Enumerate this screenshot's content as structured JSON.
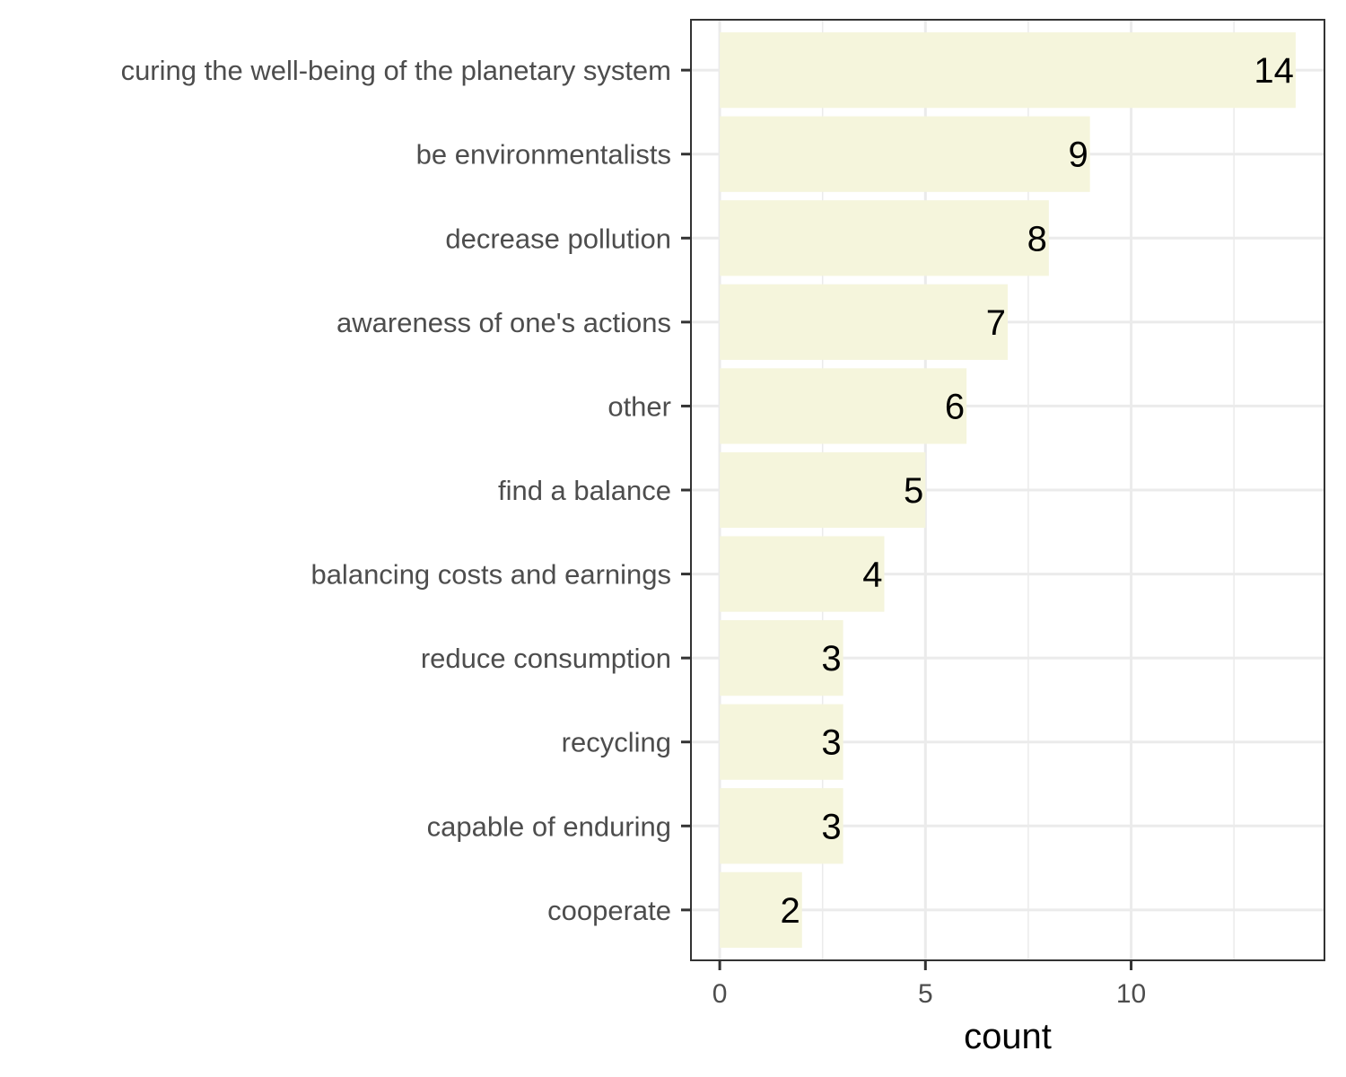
{
  "chart_data": {
    "type": "bar",
    "orientation": "horizontal",
    "categories": [
      "curing the well-being of the planetary system",
      "be environmentalists",
      "decrease pollution",
      "awareness of one's actions",
      "other",
      "find a balance",
      "balancing costs and earnings",
      "reduce consumption",
      "recycling",
      "capable of enduring",
      "cooperate"
    ],
    "values": [
      14,
      9,
      8,
      7,
      6,
      5,
      4,
      3,
      3,
      3,
      2
    ],
    "data_labels": [
      "14",
      "9",
      "8",
      "7",
      "6",
      "5",
      "4",
      "3",
      "3",
      "3",
      "2"
    ],
    "xlabel": "count",
    "ylabel": "",
    "xlim": [
      -0.7,
      14.7
    ],
    "x_ticks": [
      0,
      5,
      10
    ],
    "x_tick_labels": [
      "0",
      "5",
      "10"
    ],
    "grid": true,
    "legend": "none",
    "bar_color": "#f5f5dc",
    "grid_color": "#ebebeb",
    "panel_border_color": "#333333"
  }
}
